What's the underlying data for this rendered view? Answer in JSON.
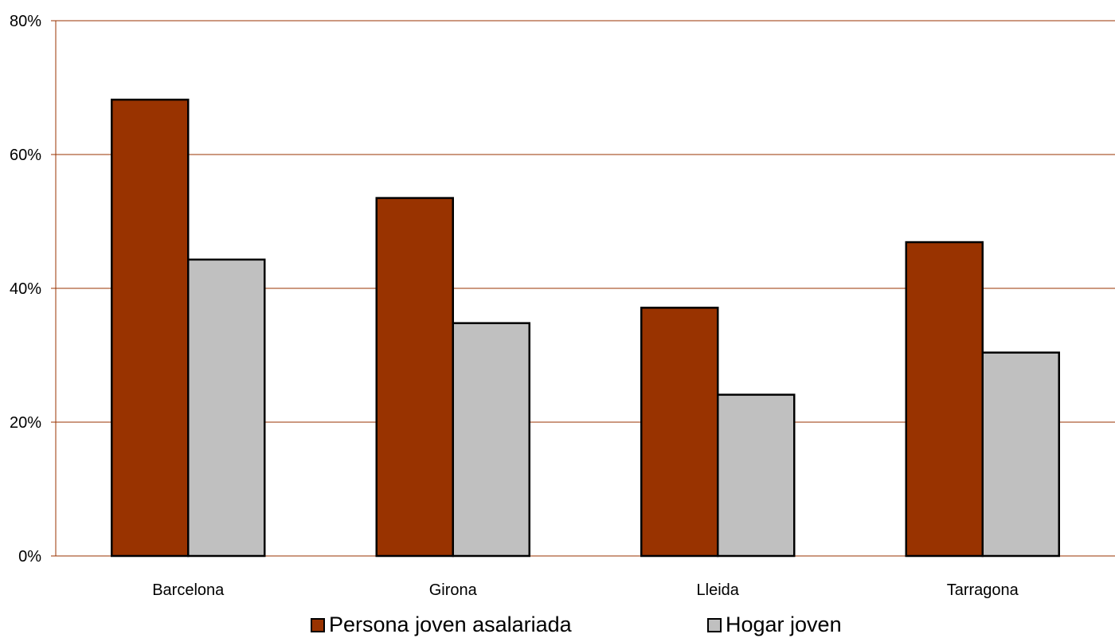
{
  "chart_data": {
    "type": "bar",
    "categories": [
      "Barcelona",
      "Girona",
      "Lleida",
      "Tarragona"
    ],
    "series": [
      {
        "name": "Persona joven asalariada",
        "values": [
          68.2,
          53.5,
          37.1,
          46.9
        ],
        "color": "#993300"
      },
      {
        "name": "Hogar joven",
        "values": [
          44.3,
          34.8,
          24.1,
          30.4
        ],
        "color": "#c0c0c0"
      }
    ],
    "ylim": [
      0,
      80
    ],
    "yticks": [
      0,
      20,
      40,
      60,
      80
    ],
    "ytick_labels": [
      "0%",
      "20%",
      "40%",
      "60%",
      "80%"
    ],
    "gridline_color": "#993300",
    "grid": true,
    "legend_position": "bottom",
    "title": "",
    "xlabel": "",
    "ylabel": ""
  }
}
